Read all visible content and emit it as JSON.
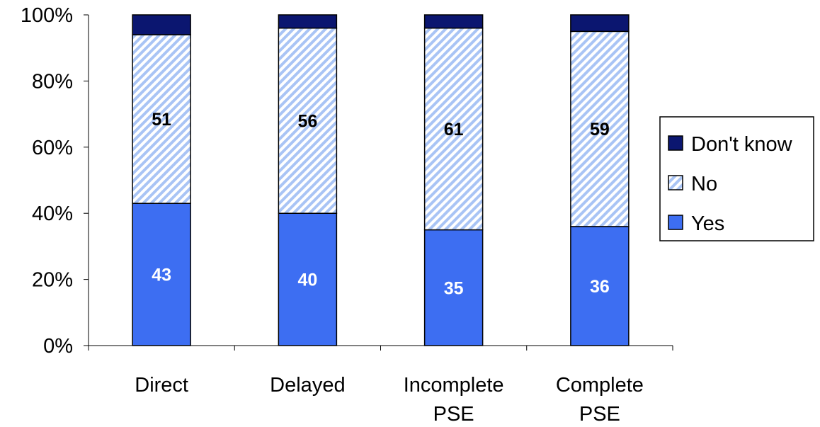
{
  "chart_data": {
    "type": "bar",
    "stacked": true,
    "percent_stacked": true,
    "categories": [
      [
        "Direct"
      ],
      [
        "Delayed"
      ],
      [
        "Incomplete",
        "PSE"
      ],
      [
        "Complete",
        "PSE"
      ]
    ],
    "series": [
      {
        "name": "Yes",
        "values": [
          43,
          40,
          35,
          36
        ],
        "color": "#3d6ef2",
        "pattern": "solid",
        "label_color": "#ffffff"
      },
      {
        "name": "No",
        "values": [
          51,
          56,
          61,
          59
        ],
        "color": "#a9c4f5",
        "pattern": "diagonal-hatch",
        "label_color": "#000000"
      },
      {
        "name": "Don't know",
        "values": [
          6,
          4,
          4,
          5
        ],
        "color": "#0b1670",
        "pattern": "solid",
        "label_color": null
      }
    ],
    "ylim": [
      0,
      100
    ],
    "yticks": [
      "0%",
      "20%",
      "40%",
      "60%",
      "80%",
      "100%"
    ],
    "title": "",
    "xlabel": "",
    "ylabel": "",
    "grid": false,
    "legend": {
      "position": "right",
      "order": [
        "Don't know",
        "No",
        "Yes"
      ]
    }
  }
}
